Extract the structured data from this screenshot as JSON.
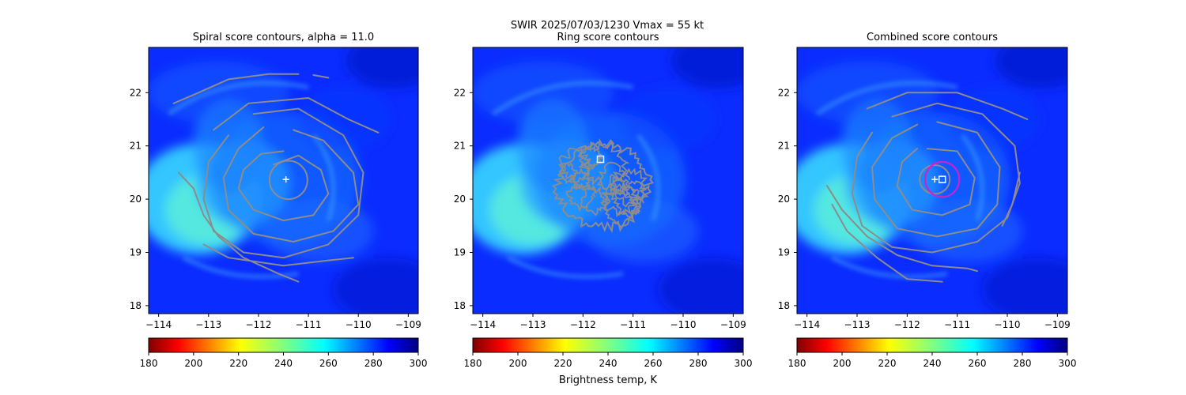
{
  "figure": {
    "suptitle_line1": "SWIR  2025/07/03/1230    Vmax = 55 kt",
    "colorbar_label": "Brightness temp, K"
  },
  "chart_data": [
    {
      "type": "heatmap",
      "title": "Spiral score contours, alpha = 11.0",
      "xlim": [
        -114.2,
        -108.8
      ],
      "ylim": [
        17.85,
        22.85
      ],
      "xticks": [
        -114,
        -113,
        -112,
        -111,
        -110,
        -109
      ],
      "yticks": [
        18,
        19,
        20,
        21,
        22
      ],
      "xtick_labels": [
        "−114",
        "−113",
        "−112",
        "−111",
        "−110",
        "−109"
      ],
      "ytick_labels": [
        "18",
        "19",
        "20",
        "21",
        "22"
      ],
      "colormap": "jet_r",
      "color_range": [
        180,
        300
      ],
      "colorbar_ticks": [
        "180",
        "200",
        "220",
        "240",
        "260",
        "280",
        "300"
      ],
      "center_marker": {
        "lon": -111.45,
        "lat": 20.37
      },
      "contour_color": "#8c8c8c"
    },
    {
      "type": "heatmap",
      "title": "Ring score contours",
      "xlim": [
        -114.2,
        -108.8
      ],
      "ylim": [
        17.85,
        22.85
      ],
      "xticks": [
        -114,
        -113,
        -112,
        -111,
        -110,
        -109
      ],
      "yticks": [
        18,
        19,
        20,
        21,
        22
      ],
      "xtick_labels": [
        "−114",
        "−113",
        "−112",
        "−111",
        "−110",
        "−109"
      ],
      "ytick_labels": [
        "18",
        "19",
        "20",
        "21",
        "22"
      ],
      "colormap": "jet_r",
      "color_range": [
        180,
        300
      ],
      "colorbar_ticks": [
        "180",
        "200",
        "220",
        "240",
        "260",
        "280",
        "300"
      ],
      "square_marker": {
        "lon": -111.65,
        "lat": 20.75
      },
      "contour_color": "#8c8c8c"
    },
    {
      "type": "heatmap",
      "title": "Combined score contours",
      "xlim": [
        -114.2,
        -108.8
      ],
      "ylim": [
        17.85,
        22.85
      ],
      "xticks": [
        -114,
        -113,
        -112,
        -111,
        -110,
        -109
      ],
      "yticks": [
        18,
        19,
        20,
        21,
        22
      ],
      "xtick_labels": [
        "−114",
        "−113",
        "−112",
        "−111",
        "−110",
        "−109"
      ],
      "ytick_labels": [
        "18",
        "19",
        "20",
        "21",
        "22"
      ],
      "colormap": "jet_r",
      "color_range": [
        180,
        300
      ],
      "colorbar_ticks": [
        "180",
        "200",
        "220",
        "240",
        "260",
        "280",
        "300"
      ],
      "center_marker": {
        "lon": -111.45,
        "lat": 20.37
      },
      "square_marker": {
        "lon": -111.3,
        "lat": 20.37
      },
      "ring_color": "#cc22cc",
      "contour_color": "#8c8c8c"
    }
  ]
}
